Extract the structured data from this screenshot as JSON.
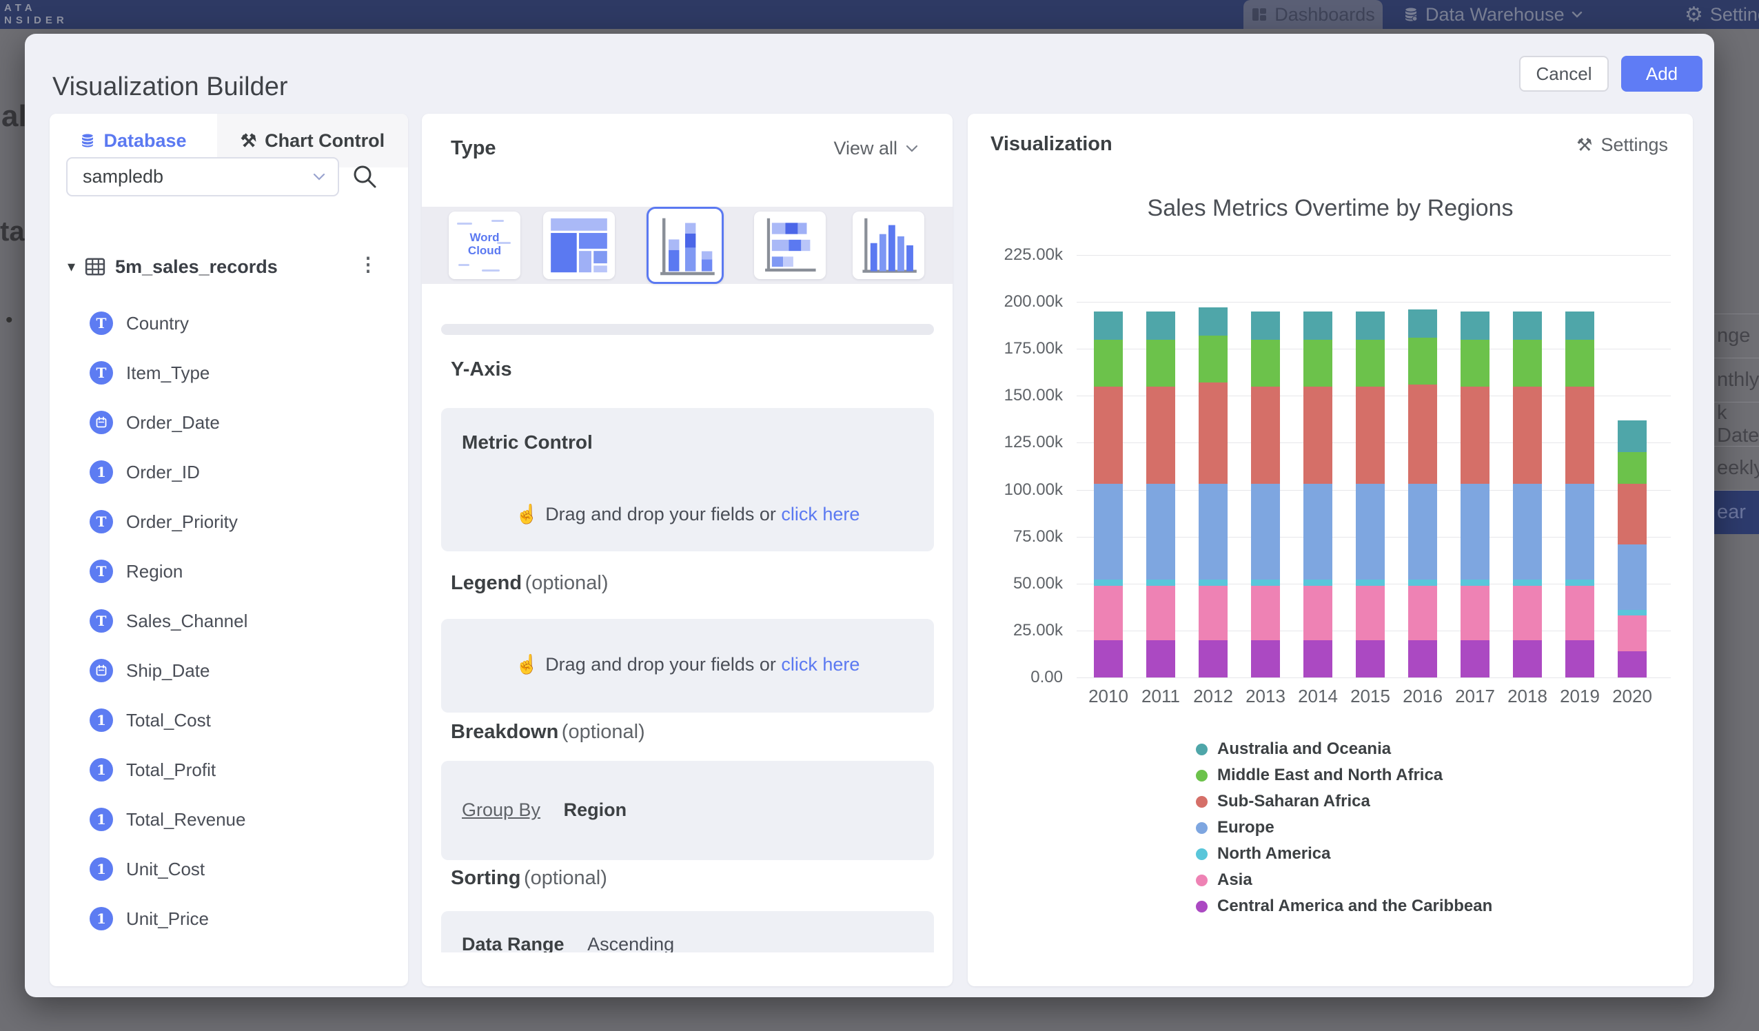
{
  "topbar": {
    "logo_fragment_line1": "ATA",
    "logo_fragment_line2": "NSIDER",
    "nav_dashboards": "Dashboards",
    "nav_data_warehouse": "Data Warehouse",
    "nav_settings": "Settings"
  },
  "background": {
    "left_text_fragment_1": "al",
    "left_text_fragment_2": "ta",
    "left_bullet": "•",
    "right_menu_items": [
      {
        "label": "nge",
        "highlighted": false
      },
      {
        "label": "nthly",
        "highlighted": false
      },
      {
        "label": "k Date",
        "highlighted": false
      },
      {
        "label": "eekly",
        "highlighted": false
      },
      {
        "label": "ear",
        "highlighted": true
      }
    ]
  },
  "modal": {
    "title": "Visualization Builder",
    "buttons": {
      "cancel": "Cancel",
      "add": "Add"
    },
    "database_panel": {
      "tab_database": "Database",
      "tab_chart_control": "Chart Control",
      "db_select_value": "sampledb",
      "table_name": "5m_sales_records",
      "fields": [
        {
          "name": "Country",
          "type": "text"
        },
        {
          "name": "Item_Type",
          "type": "text"
        },
        {
          "name": "Order_Date",
          "type": "date"
        },
        {
          "name": "Order_ID",
          "type": "number"
        },
        {
          "name": "Order_Priority",
          "type": "text"
        },
        {
          "name": "Region",
          "type": "text"
        },
        {
          "name": "Sales_Channel",
          "type": "text"
        },
        {
          "name": "Ship_Date",
          "type": "date"
        },
        {
          "name": "Total_Cost",
          "type": "number"
        },
        {
          "name": "Total_Profit",
          "type": "number"
        },
        {
          "name": "Total_Revenue",
          "type": "number"
        },
        {
          "name": "Unit_Cost",
          "type": "number"
        },
        {
          "name": "Unit_Price",
          "type": "number"
        }
      ]
    },
    "control_panel": {
      "type_title": "Type",
      "view_all": "View all",
      "word_cloud_line1": "Word",
      "word_cloud_line2": "Cloud",
      "selected_chart_type": "stacked-column",
      "y_axis_title": "Y-Axis",
      "metric_card_title": "Metric Control",
      "drop_hint": "Drag and drop your fields or",
      "drop_link": "click here",
      "legend_title": "Legend",
      "legend_optional": "(optional)",
      "breakdown_title": "Breakdown",
      "breakdown_optional": "(optional)",
      "group_by_label": "Group By",
      "group_by_value": "Region",
      "sorting_title": "Sorting",
      "sorting_optional": "(optional)",
      "sorting_row_label": "Data Range",
      "sorting_row_value": "Ascending"
    },
    "visualization_panel": {
      "title": "Visualization",
      "settings_label": "Settings"
    }
  },
  "chart_data": {
    "type": "bar",
    "stacked": true,
    "title": "Sales Metrics Overtime by Regions",
    "categories": [
      "2010",
      "2011",
      "2012",
      "2013",
      "2014",
      "2015",
      "2016",
      "2017",
      "2018",
      "2019",
      "2020"
    ],
    "values_unit": "thousands",
    "ylim": [
      0,
      225
    ],
    "y_ticks": [
      "225.00k",
      "200.00k",
      "175.00k",
      "150.00k",
      "125.00k",
      "100.00k",
      "75.00k",
      "50.00k",
      "25.00k",
      "0.00"
    ],
    "grid": true,
    "legend_position": "bottom-left",
    "series": [
      {
        "name": "Central America and the Caribbean",
        "color": "#ab49c2",
        "values": [
          20,
          20,
          20,
          20,
          20,
          20,
          20,
          20,
          20,
          20,
          14
        ]
      },
      {
        "name": "Asia",
        "color": "#ee82b4",
        "values": [
          29,
          29,
          29,
          29,
          29,
          29,
          29,
          29,
          29,
          29,
          19
        ]
      },
      {
        "name": "North America",
        "color": "#59c6da",
        "values": [
          3,
          3,
          3,
          3,
          3,
          3,
          3,
          3,
          3,
          3,
          3
        ]
      },
      {
        "name": "Europe",
        "color": "#7ea6e0",
        "values": [
          51,
          51,
          51,
          51,
          51,
          51,
          51,
          51,
          51,
          51,
          35
        ]
      },
      {
        "name": "Sub-Saharan Africa",
        "color": "#d56f68",
        "values": [
          52,
          52,
          54,
          52,
          52,
          52,
          53,
          52,
          52,
          52,
          32
        ]
      },
      {
        "name": "Middle East and North Africa",
        "color": "#6cc24b",
        "values": [
          25,
          25,
          25,
          25,
          25,
          25,
          25,
          25,
          25,
          25,
          17
        ]
      },
      {
        "name": "Australia and Oceania",
        "color": "#4fa6a9",
        "values": [
          15,
          15,
          15,
          15,
          15,
          15,
          15,
          15,
          15,
          15,
          17
        ]
      }
    ],
    "legend_order": [
      "Australia and Oceania",
      "Middle East and North Africa",
      "Sub-Saharan Africa",
      "Europe",
      "North America",
      "Asia",
      "Central America and the Caribbean"
    ]
  }
}
